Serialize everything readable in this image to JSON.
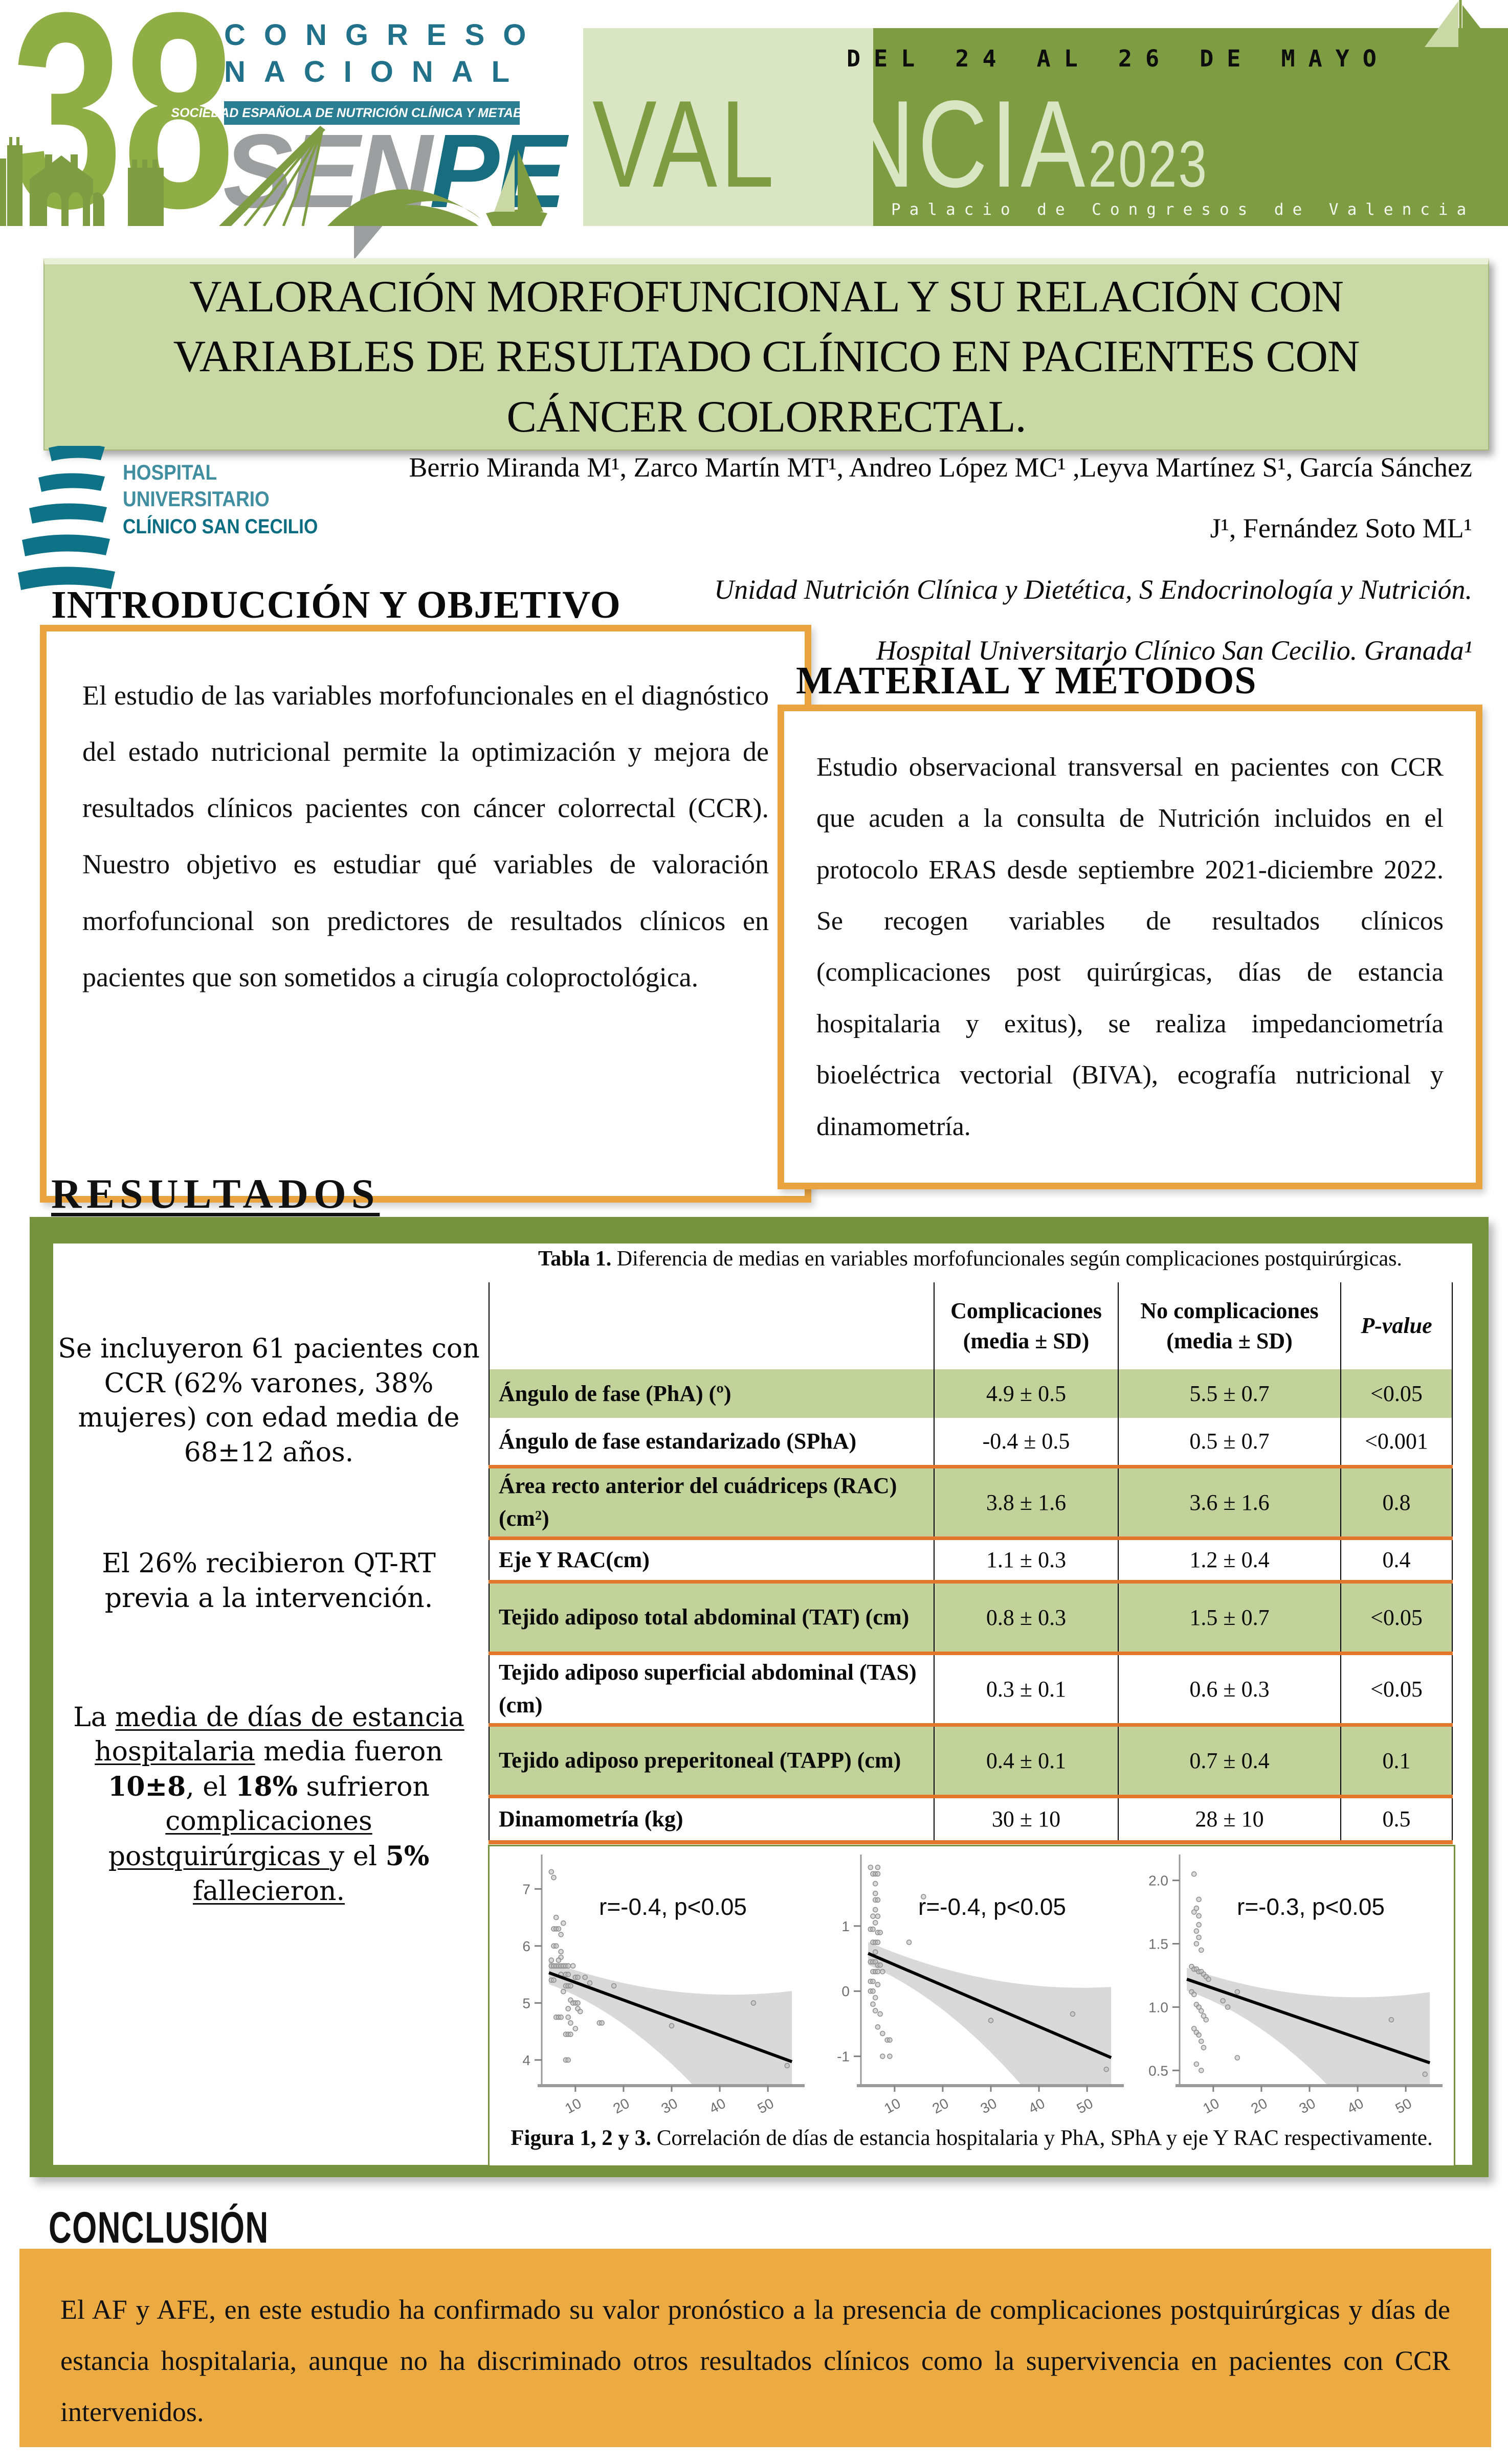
{
  "header": {
    "edition": "38",
    "congreso": "CONGRESO",
    "nacional": "NACIONAL",
    "society": "SOCIEDAD ESPAÑOLA DE NUTRICIÓN CLÍNICA Y METABOLISMO",
    "sen": "SEN",
    "pe": "PE",
    "dates": "DEL 24 AL 26 DE MAYO",
    "city_light": "VAL",
    "city_dark": "ENCIA",
    "year": "2023",
    "venue": "Palacio de Congresos de Valencia"
  },
  "hospital": {
    "l1": "HOSPITAL",
    "l2": "UNIVERSITARIO",
    "l3": "CLÍNICO SAN CECILIO"
  },
  "title_lines": [
    "VALORACIÓN MORFOFUNCIONAL Y SU RELACIÓN CON",
    "VARIABLES DE RESULTADO CLÍNICO EN PACIENTES  CON",
    "CÁNCER COLORRECTAL."
  ],
  "authors": {
    "line1": "Berrio Miranda M¹, Zarco Martín MT¹, Andreo López MC¹ ,Leyva Martínez S¹, García Sánchez",
    "line2": "J¹, Fernández Soto ML¹",
    "affil1": "Unidad Nutrición Clínica y Dietética, S Endocrinología y Nutrición.",
    "affil2": "Hospital Universitario Clínico San Cecilio. Granada¹"
  },
  "intro": {
    "heading": "INTRODUCCIÓN Y OBJETIVO",
    "body": "El estudio de las variables morfofuncionales en el diagnóstico del estado nutricional permite la optimización y mejora de resultados clínicos pacientes con cáncer colorrectal (CCR). Nuestro objetivo es estudiar qué variables de valoración morfofuncional son predictores de resultados clínicos en pacientes que son sometidos a cirugía coloproctológica."
  },
  "methods": {
    "heading": "MATERIAL Y MÉTODOS",
    "body": "Estudio observacional transversal en pacientes con CCR que acuden a la consulta de Nutrición incluidos en el protocolo ERAS desde septiembre 2021-diciembre 2022. Se recogen variables de resultados clínicos (complicaciones post quirúrgicas, días de estancia hospitalaria y exitus), se realiza impedanciometría bioeléctrica vectorial (BIVA), ecografía nutricional y dinamometría."
  },
  "results": {
    "heading": "RESULTADOS",
    "p1": "Se incluyeron 61 pacientes con CCR (62% varones, 38% mujeres) con edad media de 68±12 años.",
    "p2": "El 26% recibieron QT-RT previa a la intervención.",
    "p3_segments": [
      {
        "text": "La "
      },
      {
        "text": "media de días de estancia hospitalaria",
        "underline": true
      },
      {
        "text": " media fueron "
      },
      {
        "text": "10±8",
        "bold": true
      },
      {
        "text": ", el "
      },
      {
        "text": "18%",
        "bold": true
      },
      {
        "text": " sufrieron "
      },
      {
        "text": "complicaciones postquirúrgicas ",
        "underline": true
      },
      {
        "text": "y el "
      },
      {
        "text": "5%",
        "bold": true
      },
      {
        "text": " "
      },
      {
        "text": "fallecieron.",
        "underline": true
      }
    ]
  },
  "table": {
    "caption_bold": "Tabla 1.",
    "caption_rest": " Diferencia de medias en variables morfofuncionales según complicaciones postquirúrgicas.",
    "headers": {
      "complicaciones_l1": "Complicaciones",
      "complicaciones_l2": "(media ± SD)",
      "no_complicaciones_l1": "No complicaciones",
      "no_complicaciones_l2": "(media ± SD)",
      "p_value": "P-value"
    },
    "rows": [
      {
        "name": "Ángulo de fase (PhA) (º)",
        "comp": "4.9 ± 0.5",
        "nocomp": "5.5 ± 0.7",
        "p": "<0.05",
        "green": true
      },
      {
        "name": "Ángulo de fase estandarizado (SPhA)",
        "comp": "-0.4 ± 0.5",
        "nocomp": "0.5 ± 0.7",
        "p": "<0.001",
        "green": false
      },
      {
        "name": "Área recto anterior del cuádriceps (RAC) (cm²)",
        "comp": "3.8 ± 1.6",
        "nocomp": "3.6 ± 1.6",
        "p": "0.8",
        "green": true
      },
      {
        "name": "Eje Y RAC(cm)",
        "comp": "1.1 ± 0.3",
        "nocomp": "1.2 ± 0.4",
        "p": "0.4",
        "green": false
      },
      {
        "name": "Tejido adiposo total abdominal (TAT) (cm)",
        "comp": "0.8 ± 0.3",
        "nocomp": "1.5 ± 0.7",
        "p": "<0.05",
        "green": true
      },
      {
        "name": "Tejido adiposo superficial abdominal (TAS) (cm)",
        "comp": "0.3 ± 0.1",
        "nocomp": "0.6 ± 0.3",
        "p": "<0.05",
        "green": false
      },
      {
        "name": "Tejido adiposo preperitoneal (TAPP) (cm)",
        "comp": "0.4 ± 0.1",
        "nocomp": "0.7 ± 0.4",
        "p": "0.1",
        "green": true
      },
      {
        "name": "Dinamometría (kg)",
        "comp": "30 ± 10",
        "nocomp": "28 ± 10",
        "p": "0.5",
        "green": false
      }
    ]
  },
  "figures": {
    "caption_bold": "Figura 1, 2 y 3.",
    "caption_rest": " Correlación de días de estancia hospitalaria y PhA, SPhA y eje Y RAC respectivamente."
  },
  "chart_data": [
    {
      "type": "scatter",
      "name": "figura-1-pha-vs-estancia",
      "r_label": "r=-0.4, p<0.05",
      "title": "",
      "xlabel": "",
      "ylabel": "",
      "xlim": [
        3,
        57
      ],
      "ylim": [
        3.55,
        7.55
      ],
      "x_tick_values": [
        10,
        20,
        30,
        40,
        50
      ],
      "x_tick_labels": [
        "10",
        "20",
        "30",
        "40",
        "50"
      ],
      "y_tick_values": [
        4,
        5,
        6,
        7
      ],
      "y_tick_labels": [
        "4",
        "5",
        "6",
        "7"
      ],
      "regression": {
        "x": [
          4.5,
          55
        ],
        "y": [
          5.53,
          3.97
        ]
      },
      "points": [
        [
          5,
          7.3
        ],
        [
          5.5,
          7.2
        ],
        [
          6,
          6.5
        ],
        [
          7.5,
          6.4
        ],
        [
          5.5,
          6.3
        ],
        [
          6,
          6.3
        ],
        [
          6.5,
          6.3
        ],
        [
          7,
          6.2
        ],
        [
          5.5,
          6.0
        ],
        [
          6,
          6.0
        ],
        [
          7,
          5.9
        ],
        [
          7,
          5.8
        ],
        [
          5,
          5.75
        ],
        [
          6.5,
          5.75
        ],
        [
          5,
          5.65
        ],
        [
          5.5,
          5.65
        ],
        [
          6,
          5.65
        ],
        [
          6.5,
          5.65
        ],
        [
          7,
          5.65
        ],
        [
          7.5,
          5.65
        ],
        [
          8,
          5.65
        ],
        [
          8.5,
          5.65
        ],
        [
          9.5,
          5.65
        ],
        [
          7,
          5.5
        ],
        [
          8,
          5.5
        ],
        [
          8.5,
          5.5
        ],
        [
          10,
          5.45
        ],
        [
          10.5,
          5.45
        ],
        [
          12,
          5.45
        ],
        [
          5,
          5.4
        ],
        [
          5.5,
          5.4
        ],
        [
          13,
          5.35
        ],
        [
          8,
          5.3
        ],
        [
          8.5,
          5.3
        ],
        [
          9,
          5.3
        ],
        [
          18,
          5.3
        ],
        [
          7.5,
          5.2
        ],
        [
          9,
          5.05
        ],
        [
          9.5,
          5.0
        ],
        [
          10,
          5.0
        ],
        [
          10.5,
          5.0
        ],
        [
          47,
          5.0
        ],
        [
          8.5,
          4.9
        ],
        [
          10.5,
          4.9
        ],
        [
          11,
          4.85
        ],
        [
          6,
          4.75
        ],
        [
          6.5,
          4.75
        ],
        [
          7,
          4.75
        ],
        [
          8.5,
          4.75
        ],
        [
          9,
          4.65
        ],
        [
          15,
          4.65
        ],
        [
          15.5,
          4.65
        ],
        [
          10,
          4.55
        ],
        [
          30,
          4.6
        ],
        [
          8,
          4.45
        ],
        [
          8.5,
          4.45
        ],
        [
          9,
          4.45
        ],
        [
          8,
          4.0
        ],
        [
          8.5,
          4.0
        ],
        [
          54,
          3.9
        ]
      ]
    },
    {
      "type": "scatter",
      "name": "figura-2-spha-vs-estancia",
      "r_label": "r=-0.4, p<0.05",
      "title": "",
      "xlabel": "",
      "ylabel": "",
      "xlim": [
        3,
        57
      ],
      "ylim": [
        -1.45,
        2.05
      ],
      "x_tick_values": [
        10,
        20,
        30,
        40,
        50
      ],
      "x_tick_labels": [
        "10",
        "20",
        "30",
        "40",
        "50"
      ],
      "y_tick_values": [
        -1,
        0,
        1
      ],
      "y_tick_labels": [
        "-1",
        "0",
        "1"
      ],
      "regression": {
        "x": [
          4.5,
          55
        ],
        "y": [
          0.58,
          -1.02
        ]
      },
      "points": [
        [
          5,
          1.9
        ],
        [
          6.5,
          1.9
        ],
        [
          5.5,
          1.8
        ],
        [
          6,
          1.8
        ],
        [
          6.5,
          1.8
        ],
        [
          6,
          1.65
        ],
        [
          6,
          1.5
        ],
        [
          6,
          1.4
        ],
        [
          6.5,
          1.4
        ],
        [
          16,
          1.45
        ],
        [
          6,
          1.25
        ],
        [
          5.5,
          1.15
        ],
        [
          6.5,
          1.15
        ],
        [
          6,
          1.05
        ],
        [
          5,
          0.95
        ],
        [
          5.5,
          0.95
        ],
        [
          6.5,
          0.9
        ],
        [
          7,
          0.9
        ],
        [
          5.5,
          0.75
        ],
        [
          6,
          0.75
        ],
        [
          6.5,
          0.75
        ],
        [
          13,
          0.75
        ],
        [
          6,
          0.6
        ],
        [
          5,
          0.45
        ],
        [
          5.5,
          0.45
        ],
        [
          6,
          0.45
        ],
        [
          6.5,
          0.4
        ],
        [
          7,
          0.4
        ],
        [
          5.5,
          0.3
        ],
        [
          6,
          0.3
        ],
        [
          6.5,
          0.3
        ],
        [
          7.5,
          0.3
        ],
        [
          5,
          0.15
        ],
        [
          5.5,
          0.15
        ],
        [
          6.5,
          0.1
        ],
        [
          5,
          0.0
        ],
        [
          5.5,
          0.0
        ],
        [
          6,
          -0.1
        ],
        [
          5.5,
          -0.2
        ],
        [
          6,
          -0.3
        ],
        [
          7,
          -0.35
        ],
        [
          30,
          -0.45
        ],
        [
          47,
          -0.35
        ],
        [
          6.5,
          -0.55
        ],
        [
          7.5,
          -0.65
        ],
        [
          8.5,
          -0.75
        ],
        [
          9,
          -0.75
        ],
        [
          7.5,
          -1.0
        ],
        [
          9,
          -1.0
        ],
        [
          54,
          -1.2
        ]
      ]
    },
    {
      "type": "scatter",
      "name": "figura-3-ejey-rac-vs-estancia",
      "r_label": "r=-0.3, p<0.05",
      "title": "",
      "xlabel": "",
      "ylabel": "",
      "xlim": [
        3,
        57
      ],
      "ylim": [
        0.38,
        2.18
      ],
      "x_tick_values": [
        10,
        20,
        30,
        40,
        50
      ],
      "x_tick_labels": [
        "10",
        "20",
        "30",
        "40",
        "50"
      ],
      "y_tick_values": [
        0.5,
        1.0,
        1.5,
        2.0
      ],
      "y_tick_labels": [
        "0.5",
        "1.0",
        "1.5",
        "2.0"
      ],
      "regression": {
        "x": [
          4.5,
          55
        ],
        "y": [
          1.22,
          0.56
        ]
      },
      "points": [
        [
          6,
          2.05
        ],
        [
          7,
          1.85
        ],
        [
          6.5,
          1.78
        ],
        [
          6,
          1.75
        ],
        [
          7,
          1.72
        ],
        [
          7,
          1.65
        ],
        [
          6.5,
          1.6
        ],
        [
          7,
          1.55
        ],
        [
          6.5,
          1.5
        ],
        [
          7.5,
          1.45
        ],
        [
          5.5,
          1.32
        ],
        [
          6,
          1.3
        ],
        [
          6.5,
          1.3
        ],
        [
          7,
          1.28
        ],
        [
          7.5,
          1.28
        ],
        [
          8,
          1.26
        ],
        [
          8.5,
          1.24
        ],
        [
          9,
          1.22
        ],
        [
          5.5,
          1.12
        ],
        [
          6,
          1.1
        ],
        [
          15,
          1.12
        ],
        [
          6.5,
          1.02
        ],
        [
          7,
          1.0
        ],
        [
          7.5,
          0.97
        ],
        [
          8,
          0.93
        ],
        [
          8.5,
          0.9
        ],
        [
          12,
          1.05
        ],
        [
          13,
          1.0
        ],
        [
          6,
          0.83
        ],
        [
          6.5,
          0.8
        ],
        [
          7,
          0.78
        ],
        [
          7.5,
          0.73
        ],
        [
          8,
          0.68
        ],
        [
          6.5,
          0.55
        ],
        [
          7.5,
          0.5
        ],
        [
          15,
          0.6
        ],
        [
          47,
          0.9
        ],
        [
          54,
          0.47
        ]
      ]
    }
  ],
  "conclusion": {
    "heading": "CONCLUSIÓN",
    "body": "El AF y AFE, en este estudio ha confirmado su valor pronóstico a la presencia de complicaciones postquirúrgicas y días de estancia hospitalaria, aunque no ha discriminado otros resultados clínicos como la supervivencia en pacientes con CCR intervenidos."
  },
  "colors": {
    "olive": "#76923c",
    "banner_green": "#7e9d43",
    "banner_light": "#dae5c3",
    "title_box": "#c9d8a5",
    "table_row_green": "#c2d29a",
    "orange_box_border": "#e9a440",
    "orange_row_line": "#e2762b",
    "conclusion_bg": "#ecaa42",
    "teal": "#21718a",
    "teal_dark": "#0a6d81",
    "sen_gray": "#9c9ea0"
  }
}
